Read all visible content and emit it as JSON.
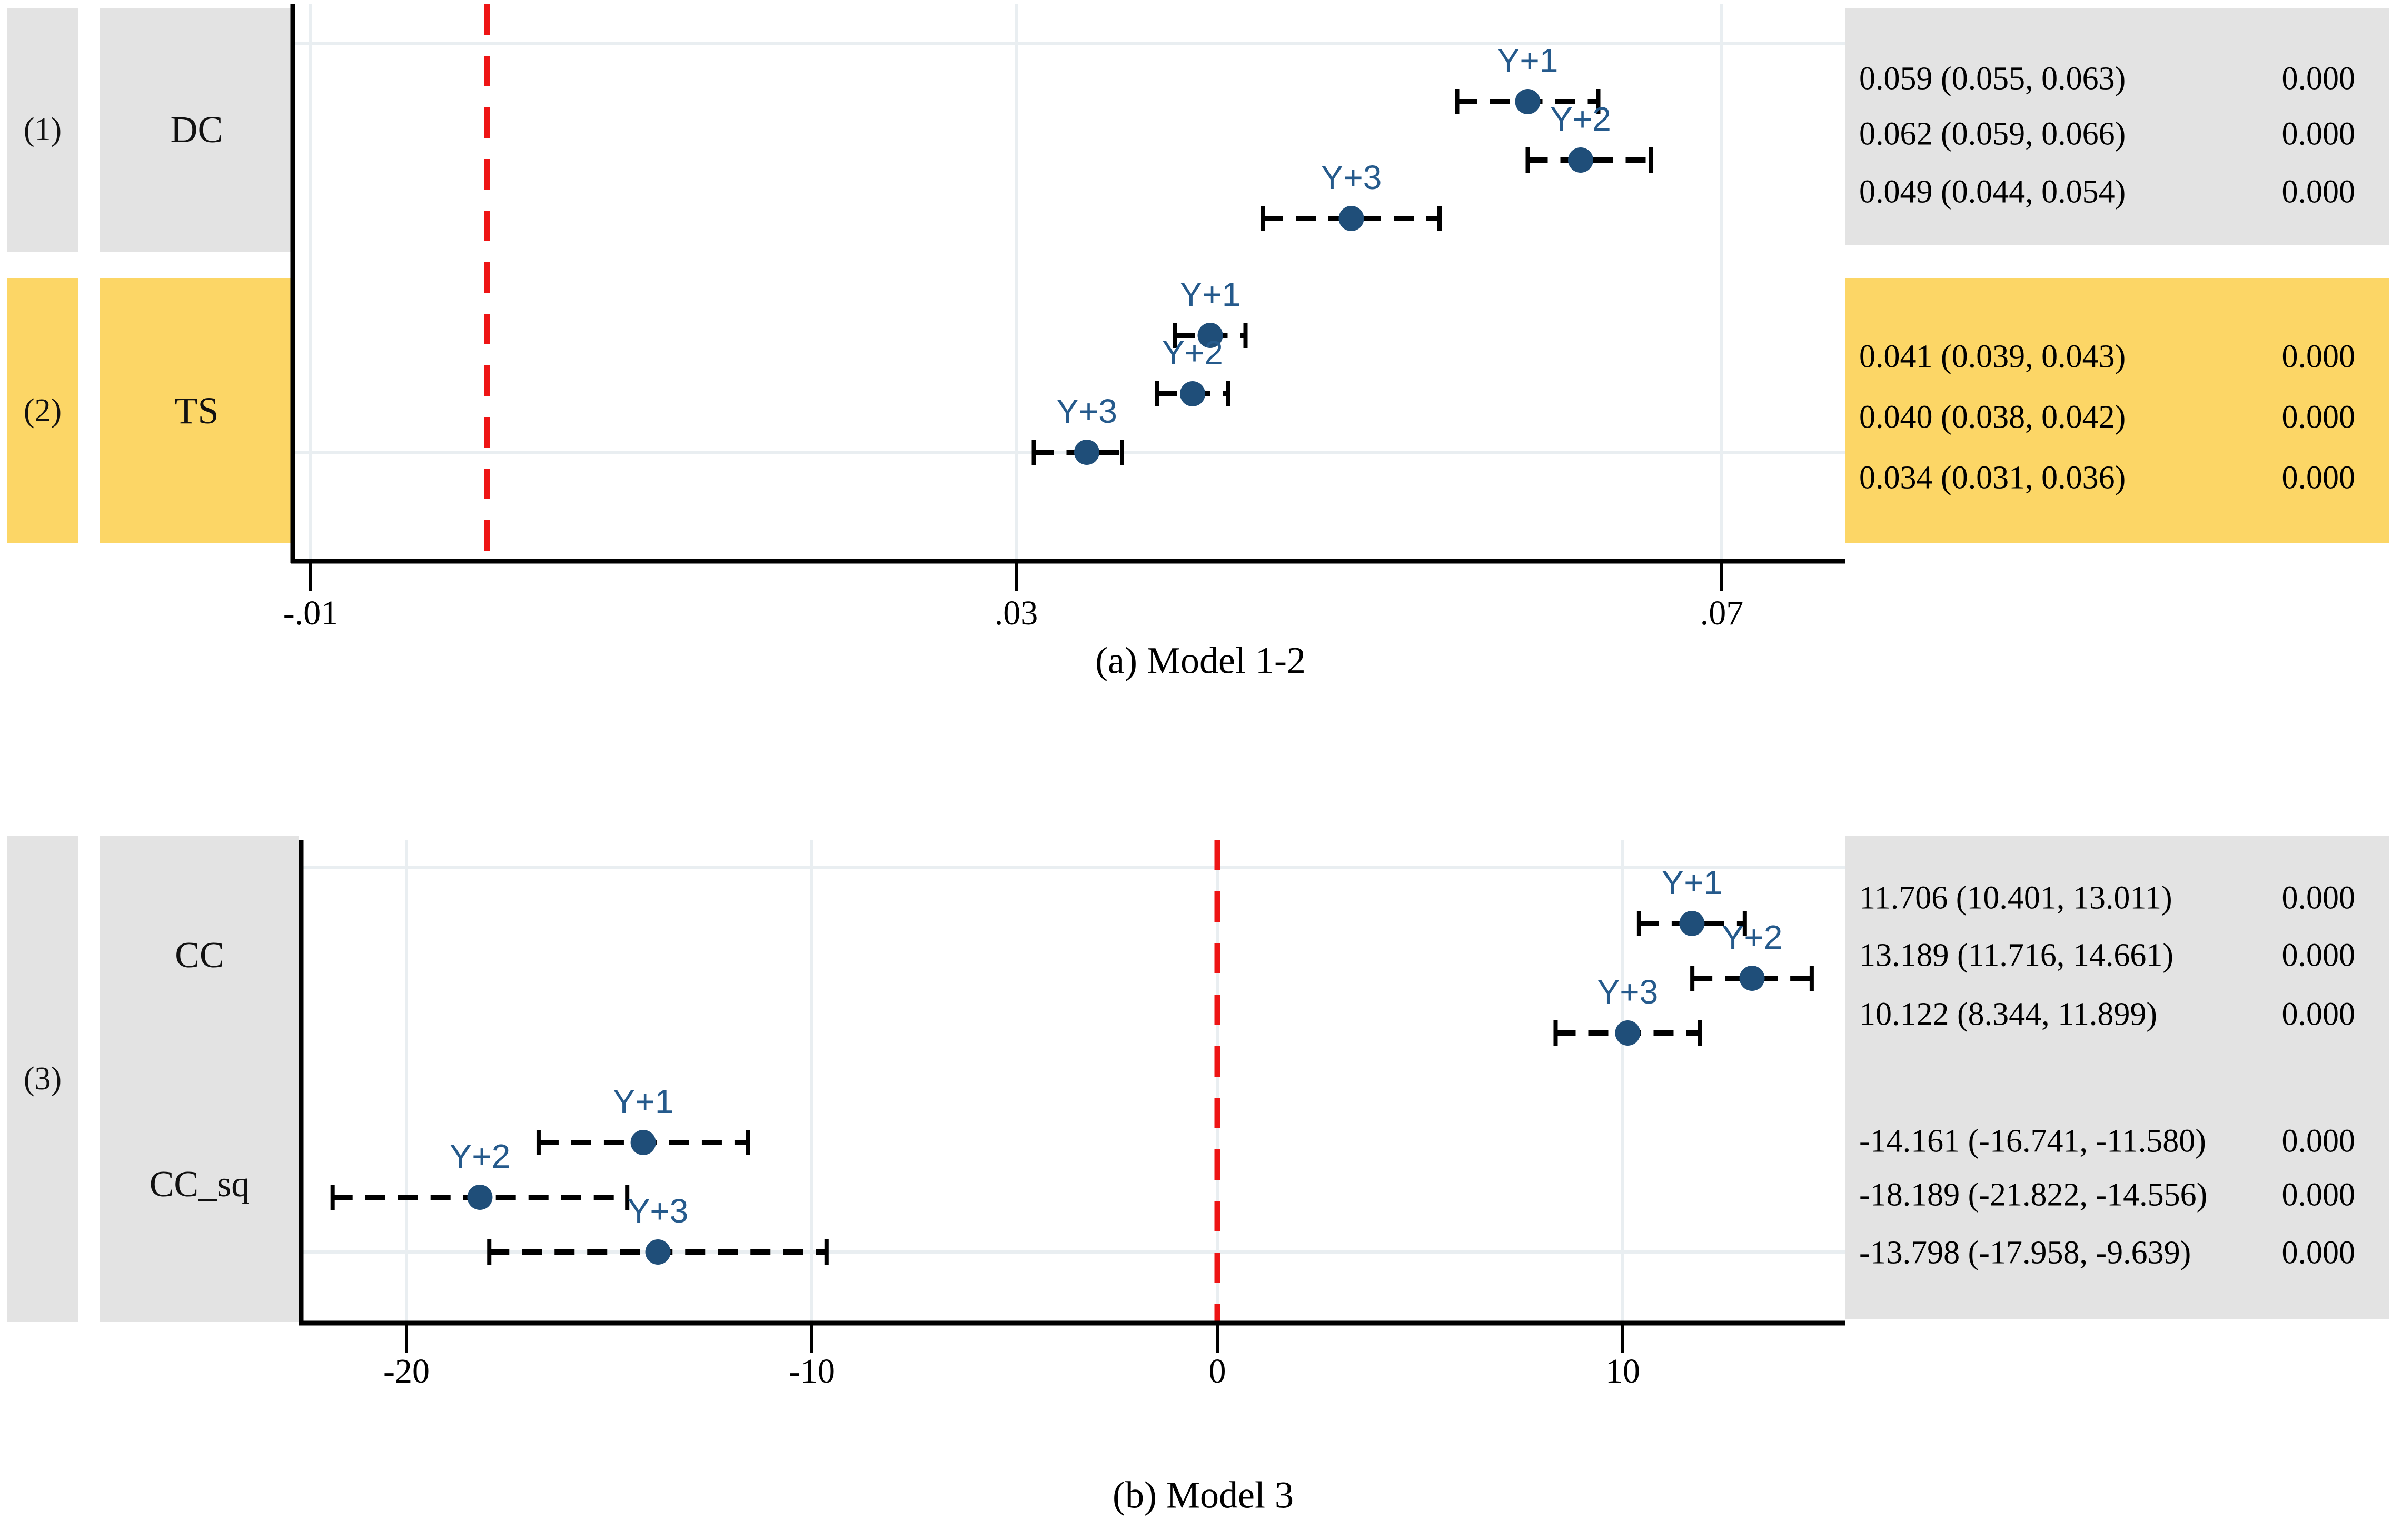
{
  "colors": {
    "marker": "#1f4e79",
    "marker_label_text": "#255a8c",
    "ci_bar": "#000000",
    "zero_line": "#ee1515",
    "gridline": "#e9eef1",
    "axis": "#000000",
    "highlight_gray": "#e3e3e3",
    "highlight_yellow": "#fcd666"
  },
  "chart_data": [
    {
      "type": "scatter",
      "subtype": "coefficient-dot-ci-forest",
      "title": "(a) Model 1-2",
      "orientation": "horizontal",
      "grid": true,
      "x_axis": {
        "ticks": [
          -0.01,
          0.03,
          0.07
        ],
        "tick_labels": [
          "-.01",
          ".03",
          ".07"
        ],
        "range": [
          -0.0122,
          0.077
        ],
        "zero_reference_line": 0
      },
      "groups": [
        {
          "model_label": "(1)",
          "variable": "DC",
          "highlight": "gray",
          "rows": [
            {
              "label": "Y+1",
              "estimate": 0.059,
              "ci_low": 0.055,
              "ci_high": 0.063,
              "estimate_text": "0.059 (0.055, 0.063)",
              "p_value": "0.000"
            },
            {
              "label": "Y+2",
              "estimate": 0.062,
              "ci_low": 0.059,
              "ci_high": 0.066,
              "estimate_text": "0.062 (0.059, 0.066)",
              "p_value": "0.000"
            },
            {
              "label": "Y+3",
              "estimate": 0.049,
              "ci_low": 0.044,
              "ci_high": 0.054,
              "estimate_text": "0.049 (0.044, 0.054)",
              "p_value": "0.000"
            }
          ]
        },
        {
          "model_label": "(2)",
          "variable": "TS",
          "highlight": "yellow",
          "rows": [
            {
              "label": "Y+1",
              "estimate": 0.041,
              "ci_low": 0.039,
              "ci_high": 0.043,
              "estimate_text": "0.041 (0.039, 0.043)",
              "p_value": "0.000"
            },
            {
              "label": "Y+2",
              "estimate": 0.04,
              "ci_low": 0.038,
              "ci_high": 0.042,
              "estimate_text": "0.040 (0.038, 0.042)",
              "p_value": "0.000"
            },
            {
              "label": "Y+3",
              "estimate": 0.034,
              "ci_low": 0.031,
              "ci_high": 0.036,
              "estimate_text": "0.034 (0.031, 0.036)",
              "p_value": "0.000"
            }
          ]
        }
      ]
    },
    {
      "type": "scatter",
      "subtype": "coefficient-dot-ci-forest",
      "title": "(b) Model 3",
      "orientation": "horizontal",
      "grid": true,
      "model_label": "(3)",
      "x_axis": {
        "ticks": [
          -20,
          -10,
          0,
          10
        ],
        "tick_labels": [
          "-20",
          "-10",
          "0",
          "10"
        ],
        "range": [
          -22.6,
          15.5
        ],
        "zero_reference_line": 0
      },
      "groups": [
        {
          "variable": "CC",
          "highlight": "gray",
          "rows": [
            {
              "label": "Y+1",
              "estimate": 11.706,
              "ci_low": 10.401,
              "ci_high": 13.011,
              "estimate_text": "11.706 (10.401, 13.011)",
              "p_value": "0.000"
            },
            {
              "label": "Y+2",
              "estimate": 13.189,
              "ci_low": 11.716,
              "ci_high": 14.661,
              "estimate_text": "13.189 (11.716, 14.661)",
              "p_value": "0.000"
            },
            {
              "label": "Y+3",
              "estimate": 10.122,
              "ci_low": 8.344,
              "ci_high": 11.899,
              "estimate_text": "10.122 (8.344, 11.899)",
              "p_value": "0.000"
            }
          ]
        },
        {
          "variable": "CC_sq",
          "highlight": "gray",
          "rows": [
            {
              "label": "Y+1",
              "estimate": -14.161,
              "ci_low": -16.741,
              "ci_high": -11.58,
              "estimate_text": "-14.161 (-16.741, -11.580)",
              "p_value": "0.000"
            },
            {
              "label": "Y+2",
              "estimate": -18.189,
              "ci_low": -21.822,
              "ci_high": -14.556,
              "estimate_text": "-18.189 (-21.822, -14.556)",
              "p_value": "0.000"
            },
            {
              "label": "Y+3",
              "estimate": -13.798,
              "ci_low": -17.958,
              "ci_high": -9.639,
              "estimate_text": "-13.798 (-17.958, -9.639)",
              "p_value": "0.000"
            }
          ]
        }
      ]
    }
  ]
}
